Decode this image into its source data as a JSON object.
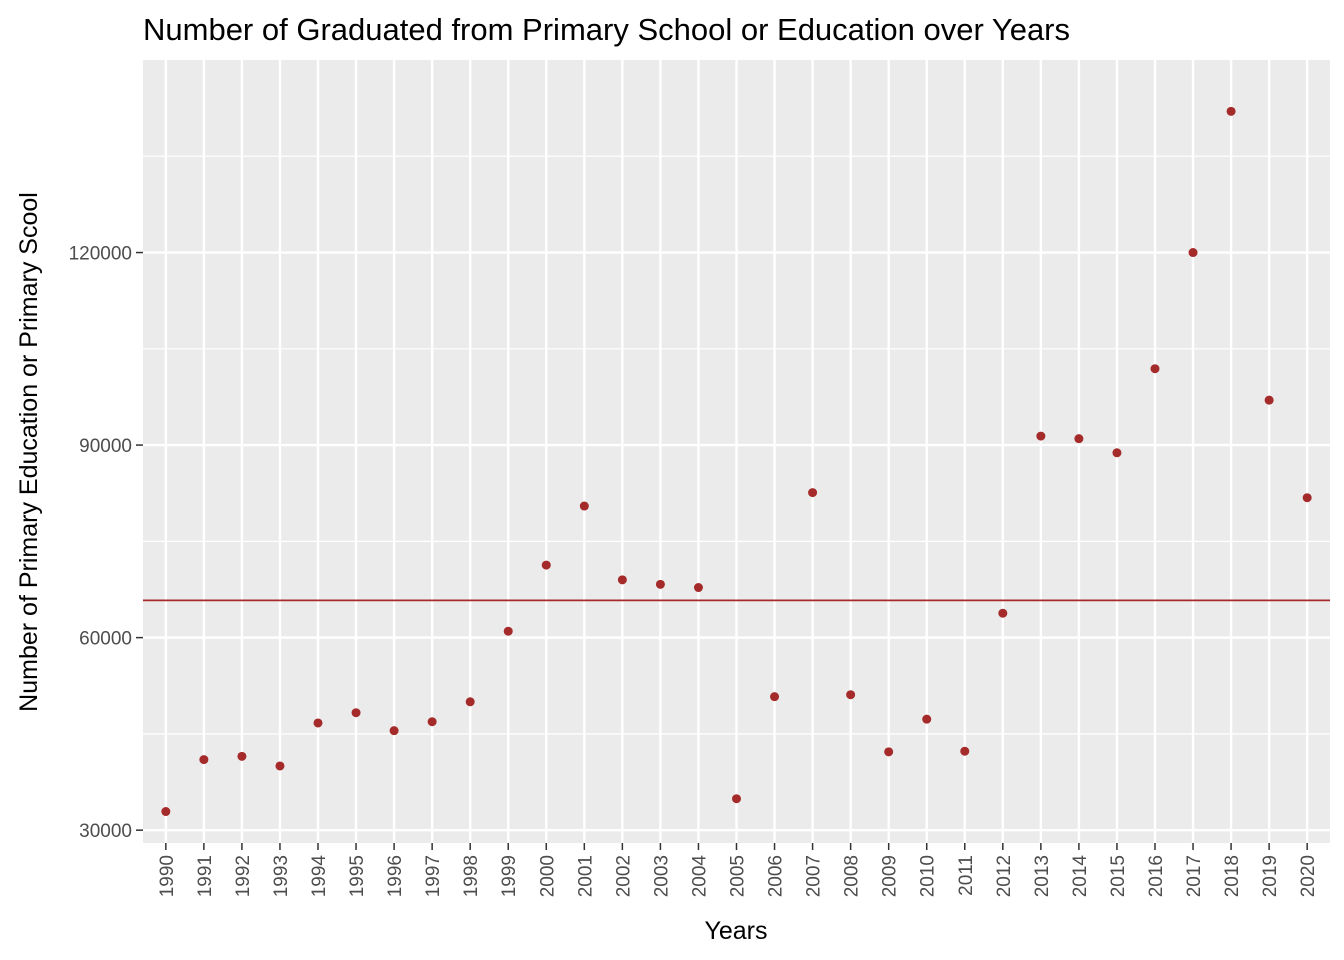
{
  "chart_data": {
    "type": "scatter",
    "title": "Number of Graduated from Primary School or Education over Years",
    "xlabel": "Years",
    "ylabel": "Number of Primary Education or Primary Scool",
    "x": [
      "1990",
      "1991",
      "1992",
      "1993",
      "1994",
      "1995",
      "1996",
      "1997",
      "1998",
      "1999",
      "2000",
      "2001",
      "2002",
      "2003",
      "2004",
      "2005",
      "2006",
      "2007",
      "2008",
      "2009",
      "2010",
      "2011",
      "2012",
      "2013",
      "2014",
      "2015",
      "2016",
      "2017",
      "2018",
      "2019",
      "2020"
    ],
    "values": [
      32900,
      41000,
      41500,
      40000,
      46700,
      48300,
      45500,
      46900,
      50000,
      61000,
      71300,
      80500,
      69000,
      68300,
      67800,
      34900,
      50800,
      82600,
      51100,
      42200,
      47300,
      42300,
      63800,
      91400,
      91000,
      88800,
      101900,
      120000,
      142000,
      97000,
      81800
    ],
    "reference_line": {
      "y": 65800
    },
    "y_ticks": [
      30000,
      60000,
      90000,
      120000
    ],
    "ylim": [
      28000,
      150000
    ],
    "grid": true,
    "legend": "none",
    "colors": {
      "point": "#a52a2a",
      "reference_line": "#a52a2a",
      "panel": "#ebebeb",
      "grid": "#ffffff"
    }
  }
}
